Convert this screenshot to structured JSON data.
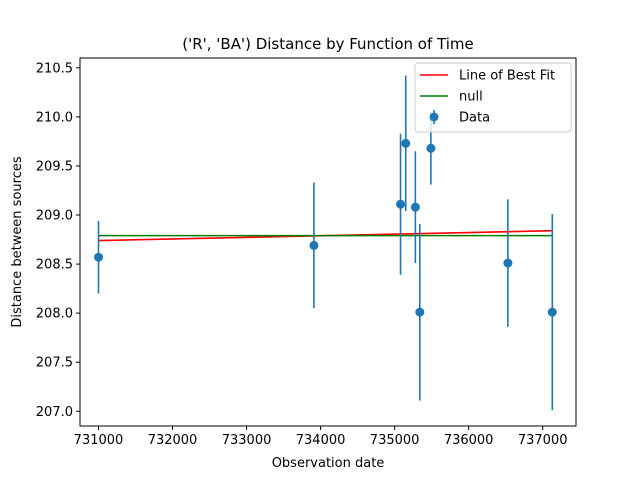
{
  "chart_data": {
    "type": "scatter",
    "title": "('R', 'BA') Distance by Function of Time",
    "xlabel": "Observation date",
    "ylabel": "Distance between sources",
    "xlim": [
      730750,
      737450
    ],
    "ylim": [
      206.85,
      210.6
    ],
    "x_ticks": [
      731000,
      732000,
      733000,
      734000,
      735000,
      736000,
      737000
    ],
    "x_tick_labels": [
      "731000",
      "732000",
      "733000",
      "734000",
      "735000",
      "736000",
      "737000"
    ],
    "y_ticks": [
      207.0,
      207.5,
      208.0,
      208.5,
      209.0,
      209.5,
      210.0,
      210.5
    ],
    "y_tick_labels": [
      "207.0",
      "207.5",
      "208.0",
      "208.5",
      "209.0",
      "209.5",
      "210.0",
      "210.5"
    ],
    "grid": false,
    "legend_position": "top-right",
    "series": [
      {
        "name": "Line of Best Fit",
        "kind": "line",
        "color": "#ff0000",
        "x": [
          731000,
          737130
        ],
        "y": [
          208.74,
          208.84
        ]
      },
      {
        "name": "null",
        "kind": "line",
        "color": "#008000",
        "x": [
          731000,
          737130
        ],
        "y": [
          208.79,
          208.79
        ]
      },
      {
        "name": "Data",
        "kind": "errorbar",
        "color": "#1f77b4",
        "points": [
          {
            "x": 731000,
            "y": 208.57,
            "err": 0.37
          },
          {
            "x": 733910,
            "y": 208.69,
            "err": 0.64
          },
          {
            "x": 735080,
            "y": 209.11,
            "err": 0.72
          },
          {
            "x": 735150,
            "y": 209.73,
            "err": 0.69
          },
          {
            "x": 735280,
            "y": 209.08,
            "err": 0.57
          },
          {
            "x": 735340,
            "y": 208.01,
            "err": 0.9
          },
          {
            "x": 735490,
            "y": 209.68,
            "err": 0.37
          },
          {
            "x": 736530,
            "y": 208.51,
            "err": 0.65
          },
          {
            "x": 737130,
            "y": 208.01,
            "err": 1.0
          }
        ]
      }
    ]
  }
}
